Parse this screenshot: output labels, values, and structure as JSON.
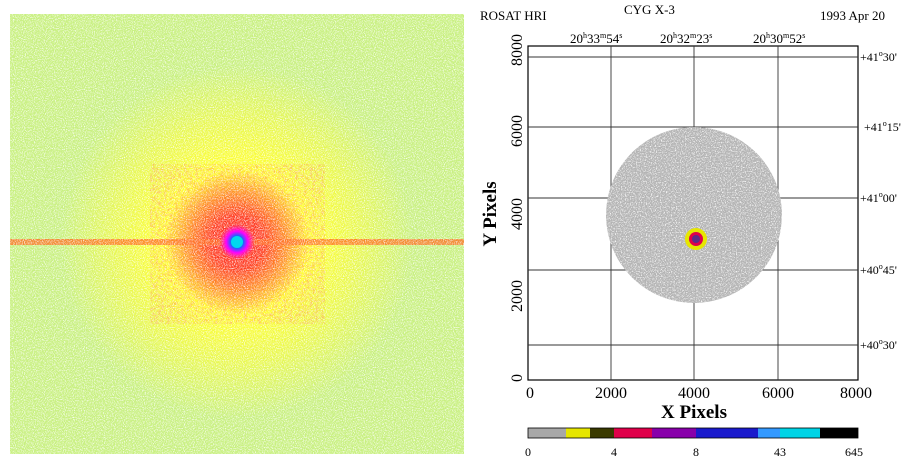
{
  "header": {
    "instrument": "ROSAT HRI",
    "target": "CYG X-3",
    "date": "1993 Apr 20"
  },
  "top_ra_ticks": [
    {
      "h": "20",
      "m": "33",
      "s": "54"
    },
    {
      "h": "20",
      "m": "32",
      "s": "23"
    },
    {
      "h": "20",
      "m": "30",
      "s": "52"
    }
  ],
  "right_dec_ticks": [
    {
      "deg": "+41",
      "min": "30"
    },
    {
      "deg": "+41",
      "min": "15"
    },
    {
      "deg": "+41",
      "min": "00"
    },
    {
      "deg": "+40",
      "min": "45"
    },
    {
      "deg": "+40",
      "min": "30"
    }
  ],
  "axes": {
    "xlabel": "X Pixels",
    "ylabel": "Y Pixels",
    "xticks": [
      "0",
      "2000",
      "4000",
      "6000",
      "8000"
    ],
    "yticks": [
      "0",
      "2000",
      "4000",
      "6000",
      "8000"
    ]
  },
  "colorbar": {
    "labels": [
      "0",
      "4",
      "8",
      "43",
      "645"
    ],
    "colors": [
      "#a8a8a8",
      "#e6e600",
      "#3a3a00",
      "#e0004a",
      "#8800aa",
      "#1a1acc",
      "#3399ff",
      "#00d4e6",
      "#000000"
    ]
  },
  "image_colors": {
    "background": "#ffffff",
    "low": "#c8f080",
    "mid": "#ffff40",
    "high": "#ff3030",
    "core": "#ff00ff",
    "peak": "#00ccee"
  }
}
